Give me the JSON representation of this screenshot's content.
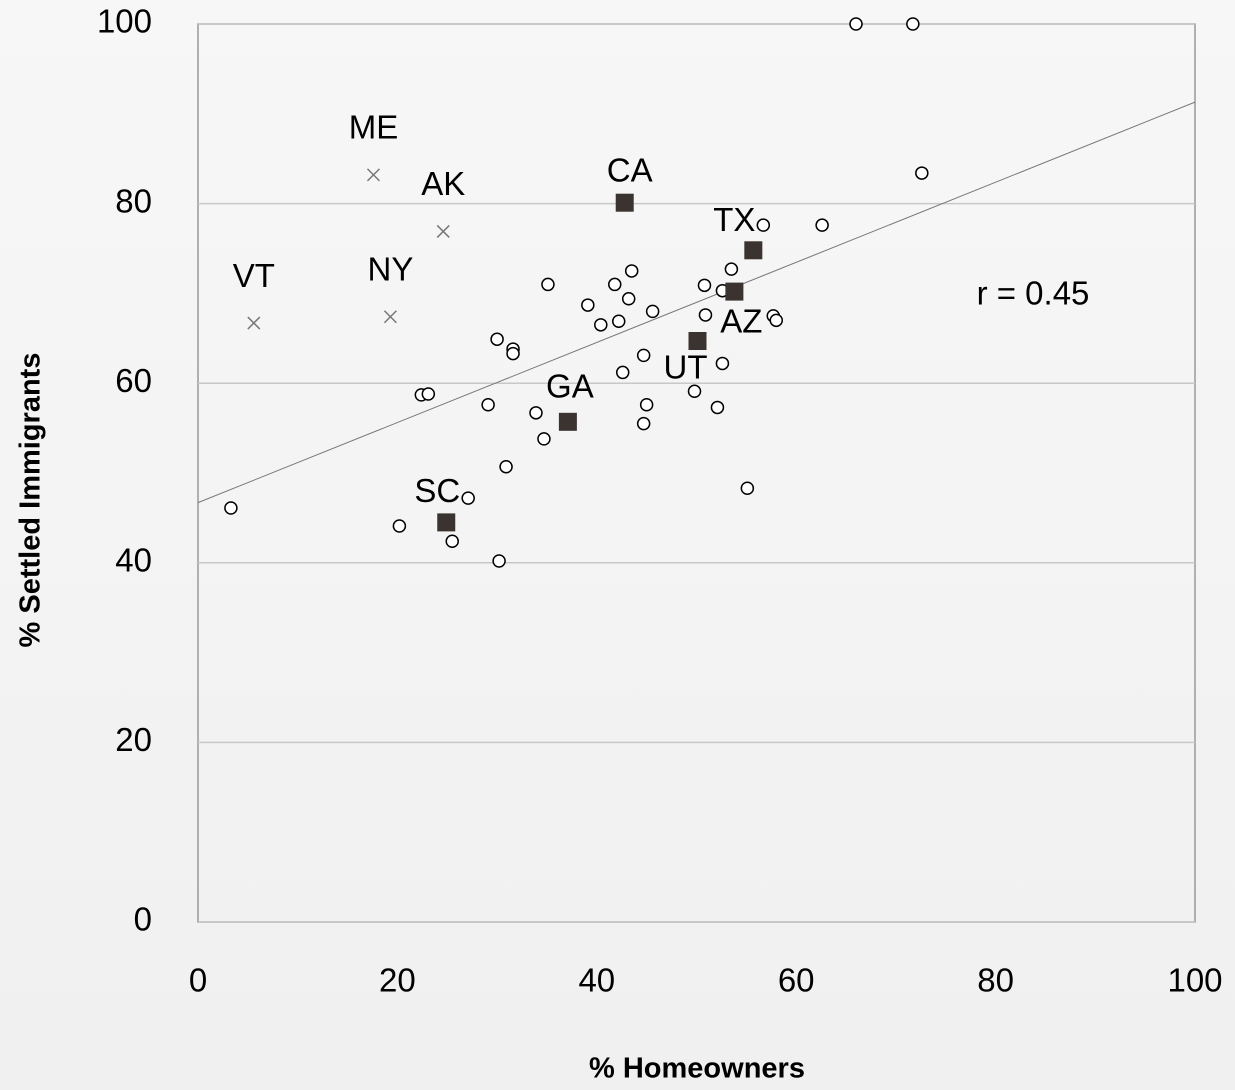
{
  "chart_data": {
    "type": "scatter",
    "x_label": "% Homeowners",
    "y_label": "% Settled Immigrants",
    "annotation": "r = 0.45",
    "xlim": [
      0,
      100
    ],
    "ylim": [
      0,
      100
    ],
    "xticks": [
      0,
      20,
      40,
      60,
      80,
      100
    ],
    "yticks": [
      0,
      20,
      40,
      60,
      80,
      100
    ],
    "grid": true,
    "trend_line": {
      "x": [
        0,
        100
      ],
      "y": [
        46.7,
        91.3
      ],
      "color": "#777777"
    },
    "series": [
      {
        "marker": "circle",
        "color": "#000000",
        "x": [
          66.0,
          71.7,
          72.6,
          62.6,
          56.7,
          53.5,
          52.6,
          50.8,
          50.9,
          57.7,
          58.0,
          52.6,
          49.8,
          52.1,
          55.1,
          43.5,
          41.8,
          43.2,
          45.6,
          42.2,
          40.4,
          39.1,
          35.1,
          44.7,
          42.6,
          45.0,
          44.7,
          33.9,
          34.7,
          30.0,
          31.6,
          31.6,
          29.1,
          22.4,
          23.1,
          30.9,
          27.1,
          25.5,
          20.2,
          30.2,
          3.3
        ],
        "y": [
          100,
          100,
          83.4,
          77.6,
          77.6,
          72.7,
          70.3,
          70.9,
          67.6,
          67.5,
          67.0,
          62.2,
          59.1,
          57.3,
          48.3,
          72.5,
          71.0,
          69.4,
          68.0,
          66.9,
          66.5,
          68.7,
          71.0,
          63.1,
          61.2,
          57.6,
          55.5,
          56.7,
          53.8,
          64.9,
          63.8,
          63.3,
          57.6,
          58.7,
          58.8,
          50.7,
          47.2,
          42.4,
          44.1,
          40.2,
          46.1
        ]
      },
      {
        "marker": "cross",
        "color": "#777777",
        "x": [
          17.6,
          24.6,
          5.6,
          19.3
        ],
        "y": [
          83.2,
          76.9,
          66.7,
          67.4
        ],
        "labels": [
          "ME",
          "AK",
          "VT",
          "NY"
        ]
      },
      {
        "marker": "square",
        "color": "#3a3330",
        "x": [
          42.8,
          55.7,
          53.8,
          50.1,
          37.1,
          24.9
        ],
        "y": [
          80.1,
          74.8,
          70.2,
          64.7,
          55.7,
          44.5
        ],
        "labels": [
          "CA",
          "TX",
          "AZ",
          "UT",
          "GA",
          "SC"
        ]
      }
    ]
  }
}
